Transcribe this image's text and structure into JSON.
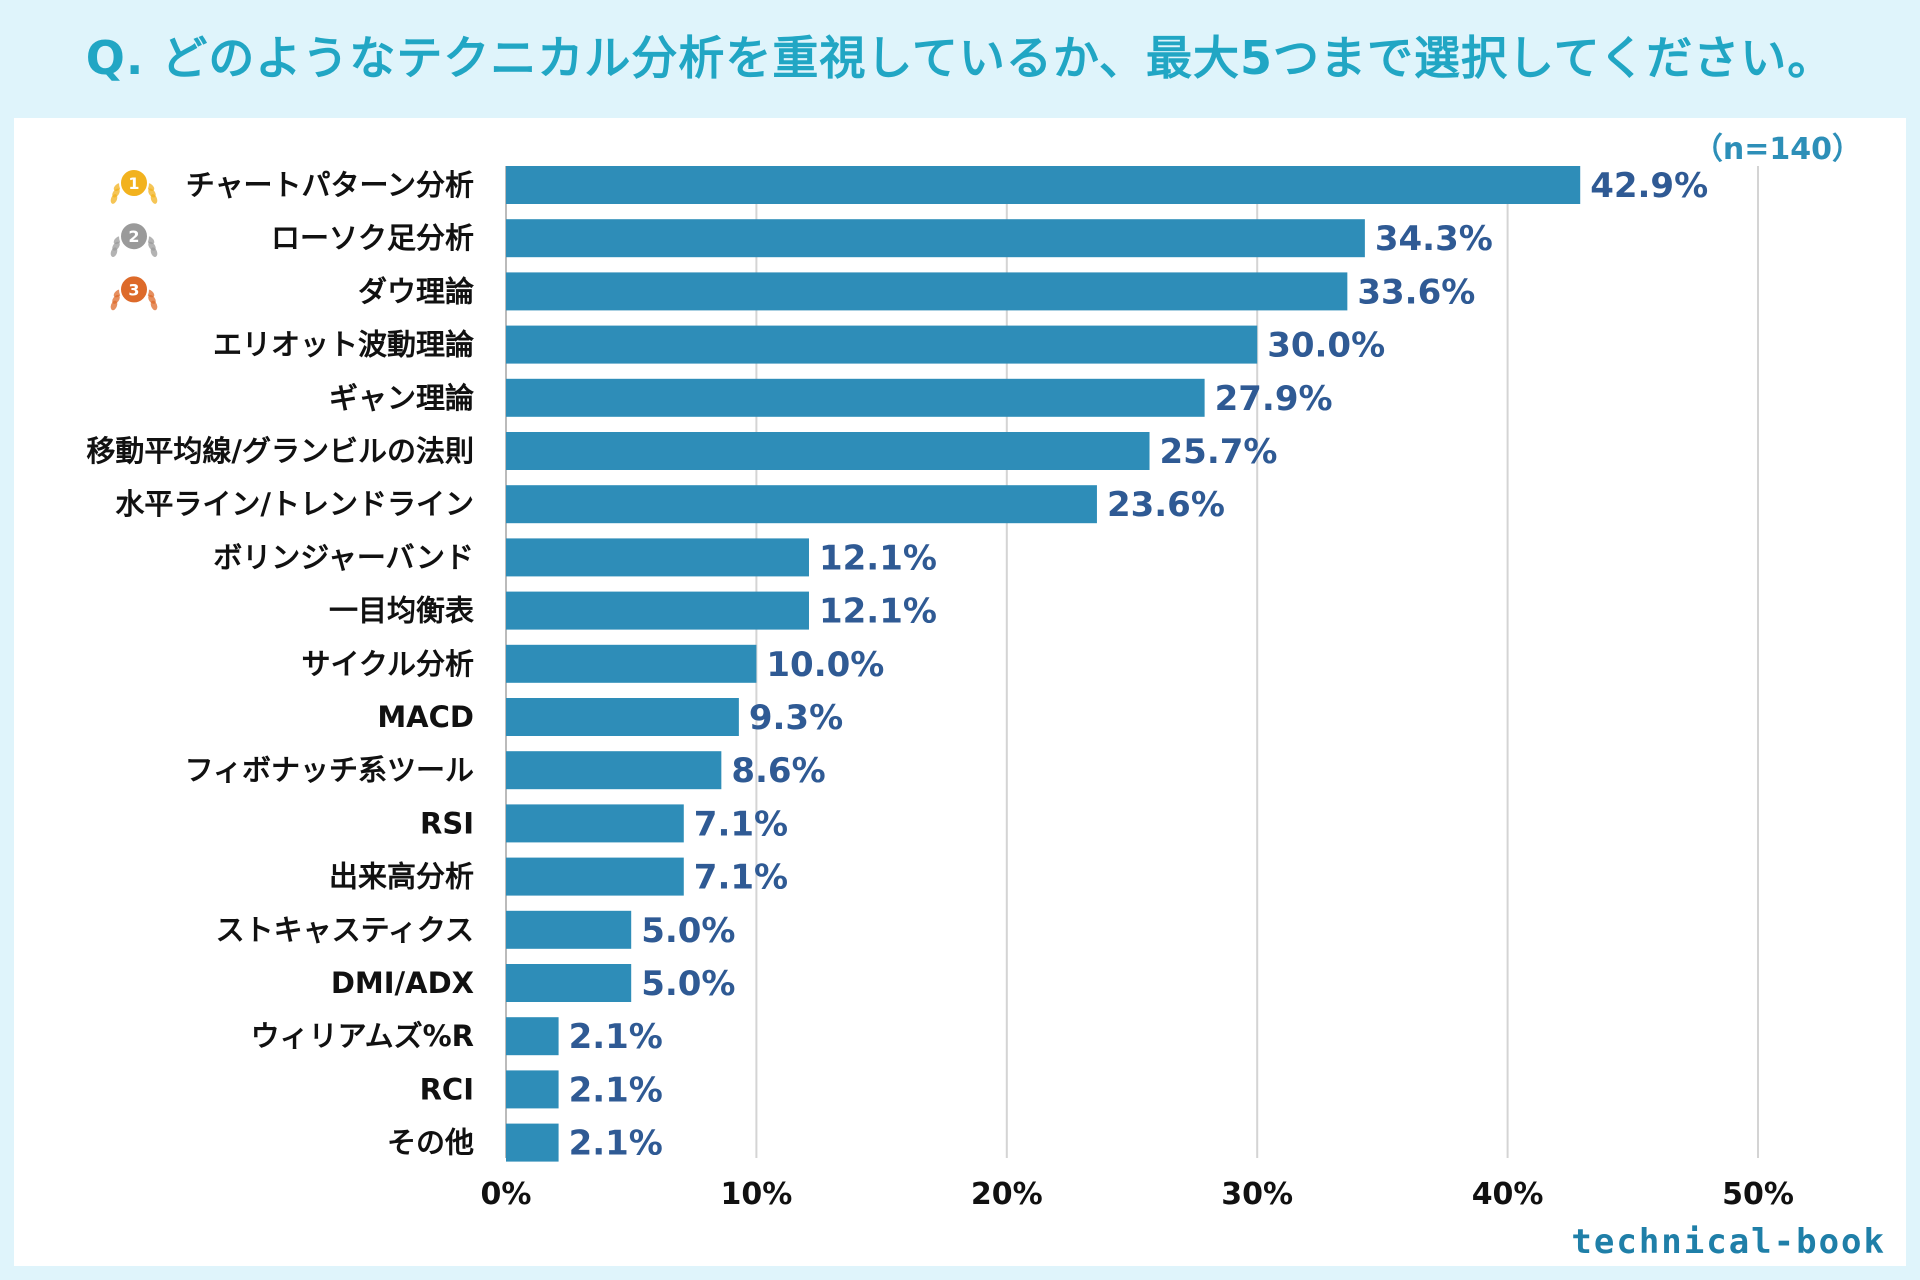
{
  "title": "Q. どのようなテクニカル分析を重視しているか、最大5つまで選択してください。",
  "sample_size": "（n=140）",
  "brand": "technical-book",
  "colors": {
    "bar": "#2e8db8",
    "value_text": "#2f5a94",
    "title": "#21a6c4",
    "gold": "#f2b21e",
    "silver": "#9a9a9a",
    "bronze": "#dd6a2a"
  },
  "rank_badges": [
    {
      "rank": "1",
      "icon": "gold-medal-icon"
    },
    {
      "rank": "2",
      "icon": "silver-medal-icon"
    },
    {
      "rank": "3",
      "icon": "bronze-medal-icon"
    }
  ],
  "chart_data": {
    "type": "bar",
    "orientation": "horizontal",
    "title": "Q. どのようなテクニカル分析を重視しているか、最大5つまで選択してください。",
    "xlabel": "",
    "ylabel": "",
    "xlim": [
      0,
      50
    ],
    "ticks": [
      "0%",
      "10%",
      "20%",
      "30%",
      "40%",
      "50%"
    ],
    "tick_values": [
      0,
      10,
      20,
      30,
      40,
      50
    ],
    "categories": [
      "チャートパターン分析",
      "ローソク足分析",
      "ダウ理論",
      "エリオット波動理論",
      "ギャン理論",
      "移動平均線/グランビルの法則",
      "水平ライン/トレンドライン",
      "ボリンジャーバンド",
      "一目均衡表",
      "サイクル分析",
      "MACD",
      "フィボナッチ系ツール",
      "RSI",
      "出来高分析",
      "ストキャスティクス",
      "DMI/ADX",
      "ウィリアムズ%R",
      "RCI",
      "その他"
    ],
    "values": [
      42.9,
      34.3,
      33.6,
      30.0,
      27.9,
      25.7,
      23.6,
      12.1,
      12.1,
      10.0,
      9.3,
      8.6,
      7.1,
      7.1,
      5.0,
      5.0,
      2.1,
      2.1,
      2.1
    ],
    "value_labels": [
      "42.9%",
      "34.3%",
      "33.6%",
      "30.0%",
      "27.9%",
      "25.7%",
      "23.6%",
      "12.1%",
      "12.1%",
      "10.0%",
      "9.3%",
      "8.6%",
      "7.1%",
      "7.1%",
      "5.0%",
      "5.0%",
      "2.1%",
      "2.1%",
      "2.1%"
    ],
    "grid": true
  }
}
